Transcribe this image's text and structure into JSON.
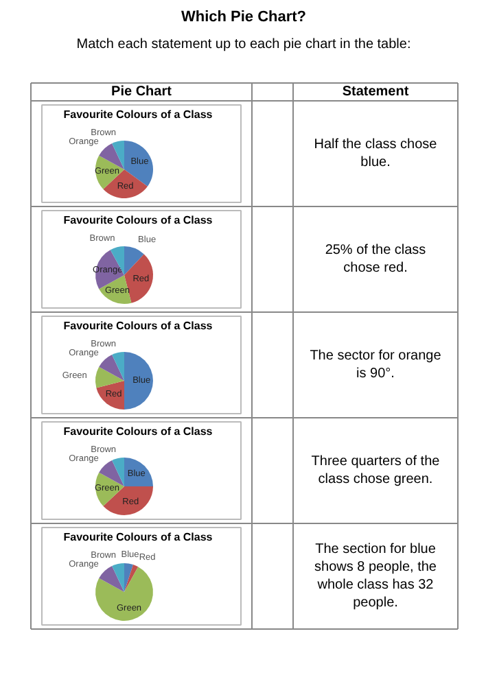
{
  "chart_data": [
    {
      "type": "other",
      "title": "Which Pie Chart?",
      "subtitle": "Match each statement up to each pie chart in the table:",
      "annotations": [
        "Pie Chart",
        "Statement"
      ]
    },
    {
      "type": "pie",
      "title": "Favourite Colours of a Class",
      "categories": [
        "Blue",
        "Red",
        "Green",
        "Orange",
        "Brown"
      ],
      "values": [
        35,
        28,
        20,
        10,
        7
      ],
      "colors": [
        "#4f81bd",
        "#c0504d",
        "#9bbb59",
        "#8064a2",
        "#4bacc6"
      ]
    },
    {
      "type": "other",
      "annotations": [
        "Half the class chose blue."
      ]
    },
    {
      "type": "pie",
      "title": "Favourite Colours of a Class",
      "categories": [
        "Blue",
        "Red",
        "Green",
        "Orange",
        "Brown"
      ],
      "values": [
        12,
        34,
        21,
        25,
        8
      ],
      "colors": [
        "#4f81bd",
        "#c0504d",
        "#9bbb59",
        "#8064a2",
        "#4bacc6"
      ]
    },
    {
      "type": "other",
      "annotations": [
        "25% of the class chose red."
      ]
    },
    {
      "type": "pie",
      "title": "Favourite Colours of a Class",
      "categories": [
        "Blue",
        "Red",
        "Green",
        "Orange",
        "Brown"
      ],
      "values": [
        50,
        21,
        12,
        10,
        7
      ],
      "colors": [
        "#4f81bd",
        "#c0504d",
        "#9bbb59",
        "#8064a2",
        "#4bacc6"
      ]
    },
    {
      "type": "other",
      "annotations": [
        "The sector for orange is 90°."
      ]
    },
    {
      "type": "pie",
      "title": "Favourite Colours of a Class",
      "categories": [
        "Blue",
        "Red",
        "Green",
        "Orange",
        "Brown"
      ],
      "values": [
        25,
        38,
        20,
        10,
        7
      ],
      "colors": [
        "#4f81bd",
        "#c0504d",
        "#9bbb59",
        "#8064a2",
        "#4bacc6"
      ]
    },
    {
      "type": "other",
      "annotations": [
        "Three quarters of the class chose green."
      ]
    },
    {
      "type": "pie",
      "title": "Favourite Colours of a Class",
      "categories": [
        "Blue",
        "Red",
        "Green",
        "Orange",
        "Brown"
      ],
      "values": [
        5,
        3,
        75,
        10,
        7
      ],
      "colors": [
        "#4f81bd",
        "#c0504d",
        "#9bbb59",
        "#8064a2",
        "#4bacc6"
      ]
    },
    {
      "type": "other",
      "annotations": [
        "The section for blue shows 8 people, the whole class has 32 people."
      ]
    }
  ]
}
